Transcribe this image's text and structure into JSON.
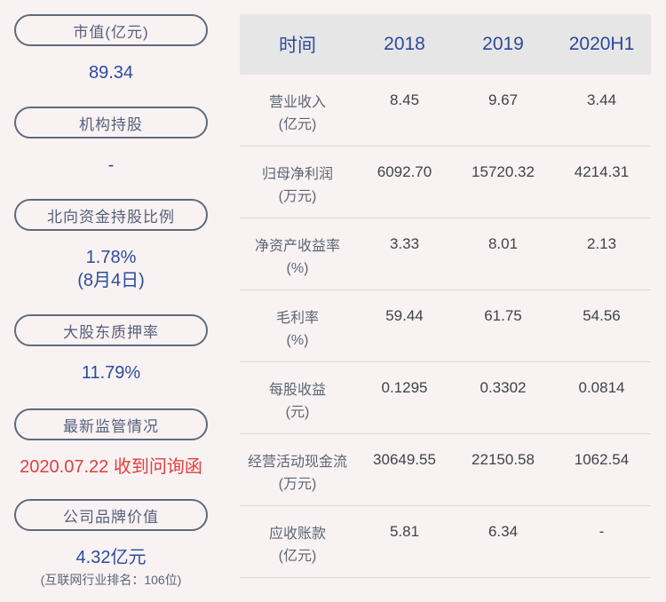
{
  "page": {
    "background": "#f8f2f3",
    "accent_blue": "#2c4c9c",
    "alert_red": "#e43d3c",
    "header_bg": "#e7e6e7"
  },
  "sidebar": {
    "items": [
      {
        "label": "市值(亿元)",
        "value": "89.34"
      },
      {
        "label": "机构持股",
        "value": "-"
      },
      {
        "label": "北向资金持股比例",
        "value": "1.78%",
        "value2": "(8月4日)"
      },
      {
        "label": "大股东质押率",
        "value": "11.79%"
      },
      {
        "label": "最新监管情况",
        "value": "2020.07.22 收到问询函"
      },
      {
        "label": "公司品牌价值",
        "value": "4.32亿元",
        "note": "(互联网行业排名：106位)"
      }
    ]
  },
  "table": {
    "header": {
      "col0": "时间",
      "col1": "2018",
      "col2": "2019",
      "col3": "2020H1"
    },
    "rows": [
      {
        "label": "营业收入",
        "unit": "(亿元)",
        "v1": "8.45",
        "v2": "9.67",
        "v3": "3.44"
      },
      {
        "label": "归母净利润",
        "unit": "(万元)",
        "v1": "6092.70",
        "v2": "15720.32",
        "v3": "4214.31"
      },
      {
        "label": "净资产收益率",
        "unit": "(%)",
        "v1": "3.33",
        "v2": "8.01",
        "v3": "2.13"
      },
      {
        "label": "毛利率",
        "unit": "(%)",
        "v1": "59.44",
        "v2": "61.75",
        "v3": "54.56"
      },
      {
        "label": "每股收益",
        "unit": "(元)",
        "v1": "0.1295",
        "v2": "0.3302",
        "v3": "0.0814"
      },
      {
        "label": "经营活动现金流",
        "unit": "(万元)",
        "v1": "30649.55",
        "v2": "22150.58",
        "v3": "1062.54"
      },
      {
        "label": "应收账款",
        "unit": "(亿元)",
        "v1": "5.81",
        "v2": "6.34",
        "v3": "-"
      }
    ]
  }
}
